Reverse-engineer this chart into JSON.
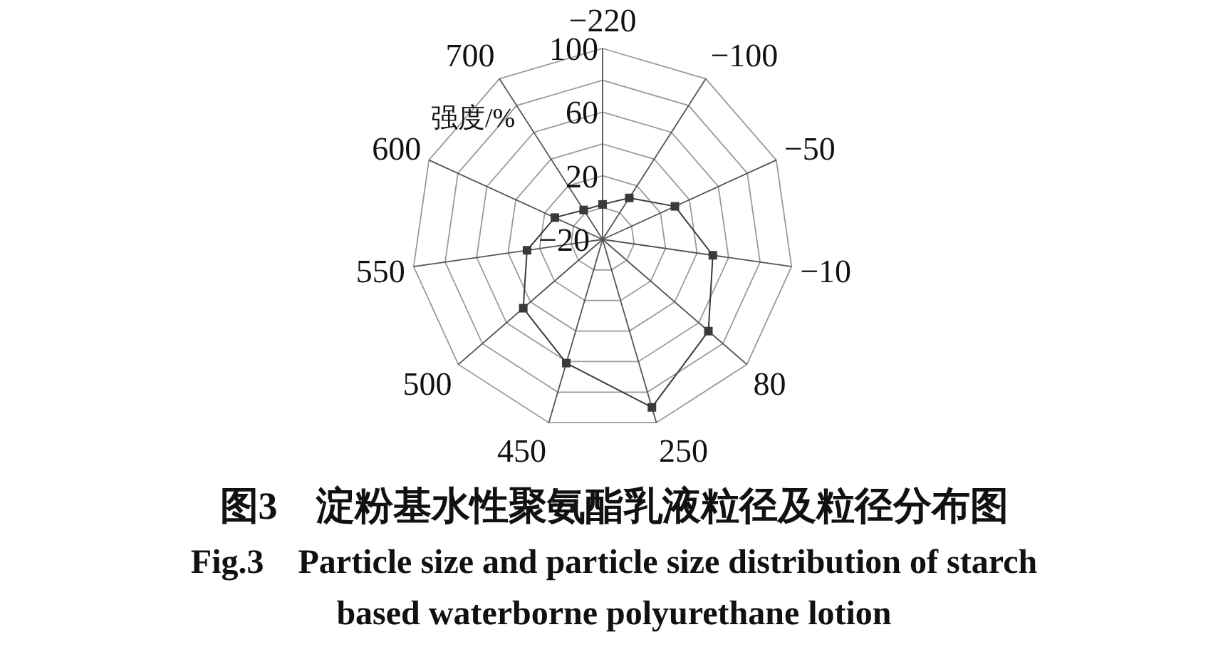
{
  "chart_data": {
    "type": "radar",
    "title": "图3　淀粉基水性聚氨酯乳液粒径及粒径分布图",
    "subtitle": "Fig.3　Particle size and particle size distribution of starch based waterborne polyurethane lotion",
    "ylabel": "强度/%",
    "categories": [
      "−220",
      "−100",
      "−50",
      "−10",
      "80",
      "250",
      "450",
      "500",
      "550",
      "600",
      "700"
    ],
    "series": [
      {
        "color": "#3a3a3a",
        "values": [
          2,
          11,
          30,
          50,
          68,
          90,
          61,
          46,
          28,
          13,
          2
        ]
      }
    ],
    "ylim": [
      -20,
      100
    ],
    "yticks": [
      {
        "value": -20,
        "label": "−20"
      },
      20,
      60,
      100
    ],
    "marker": "square",
    "line_style": "solid",
    "grid": true
  }
}
